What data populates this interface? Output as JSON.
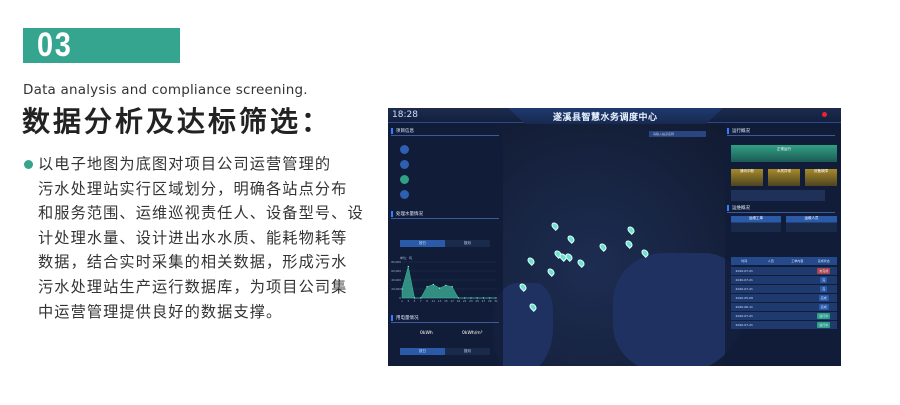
{
  "section": {
    "number": "03",
    "subtitle_en": "Data analysis and compliance screening.",
    "title": "数据分析及达标筛选：",
    "body_lines": [
      "以电子地图为底图对项目公司运营管理的",
      "污水处理站实行区域划分，明确各站点分布",
      "和服务范围、运维巡视责任人、设备型号、设",
      "计处理水量、设计进出水水质、能耗物耗等",
      "数据，结合实时采集的相关数据，形成污水",
      "污水处理站生产运行数据库，为项目公司集",
      "中运营管理提供良好的数据支撑。"
    ],
    "accent": "#35a58f"
  },
  "dashboard": {
    "time": "18:28",
    "title": "遂溪县智慧水务调度中心",
    "search_placeholder": "请输入站点名称",
    "left": {
      "project_panel": "项目信息",
      "water_panel": "处理水量情况",
      "power_panel": "用电量情况",
      "tabs": [
        "按日",
        "按月"
      ],
      "power_values": [
        "0kWh",
        "0kWh/m³"
      ],
      "chart_data": {
        "type": "area",
        "ylabel": "单位：吨",
        "ylim": [
          0,
          80000
        ],
        "yticks": [
          "0",
          "20,000",
          "40,000",
          "60,000",
          "80,000"
        ],
        "x": [
          1,
          3,
          5,
          7,
          9,
          11,
          13,
          15,
          17,
          19,
          21,
          23,
          25,
          27,
          29,
          31
        ],
        "series": [
          {
            "values": [
              20000,
              70000,
              0,
              0,
              25000,
              30000,
              22000,
              28000,
              25000,
              0,
              0,
              0,
              0,
              0,
              0,
              0
            ]
          }
        ],
        "color": "#3fbf9f"
      }
    },
    "right": {
      "run_panel": "运行概况",
      "ops_panel": "运维概况",
      "normal_label": "正常运行",
      "status_cards": [
        "通讯中断",
        "水质异常",
        "设备故障"
      ],
      "buttons": [
        "运维工单",
        "运维人员"
      ],
      "table": {
        "headers": [
          "时间",
          "人员",
          "工单内容",
          "完成状态"
        ],
        "rows": [
          [
            "2020-07-21",
            "",
            "",
            "未完成"
          ],
          [
            "2020-07-21",
            "",
            "",
            "完"
          ],
          [
            "2020-07-21",
            "",
            "",
            "完"
          ],
          [
            "2020-05-09",
            "",
            "",
            "完成"
          ],
          [
            "2020-06-11",
            "",
            "",
            "完成"
          ],
          [
            "2020-07-21",
            "",
            "",
            "进行中"
          ],
          [
            "2020-07-21",
            "",
            "",
            "进行中"
          ]
        ]
      }
    },
    "status_colors": {
      "normal": "#2fa184",
      "warning": "#a88a2a",
      "danger": "#b0454f"
    }
  }
}
